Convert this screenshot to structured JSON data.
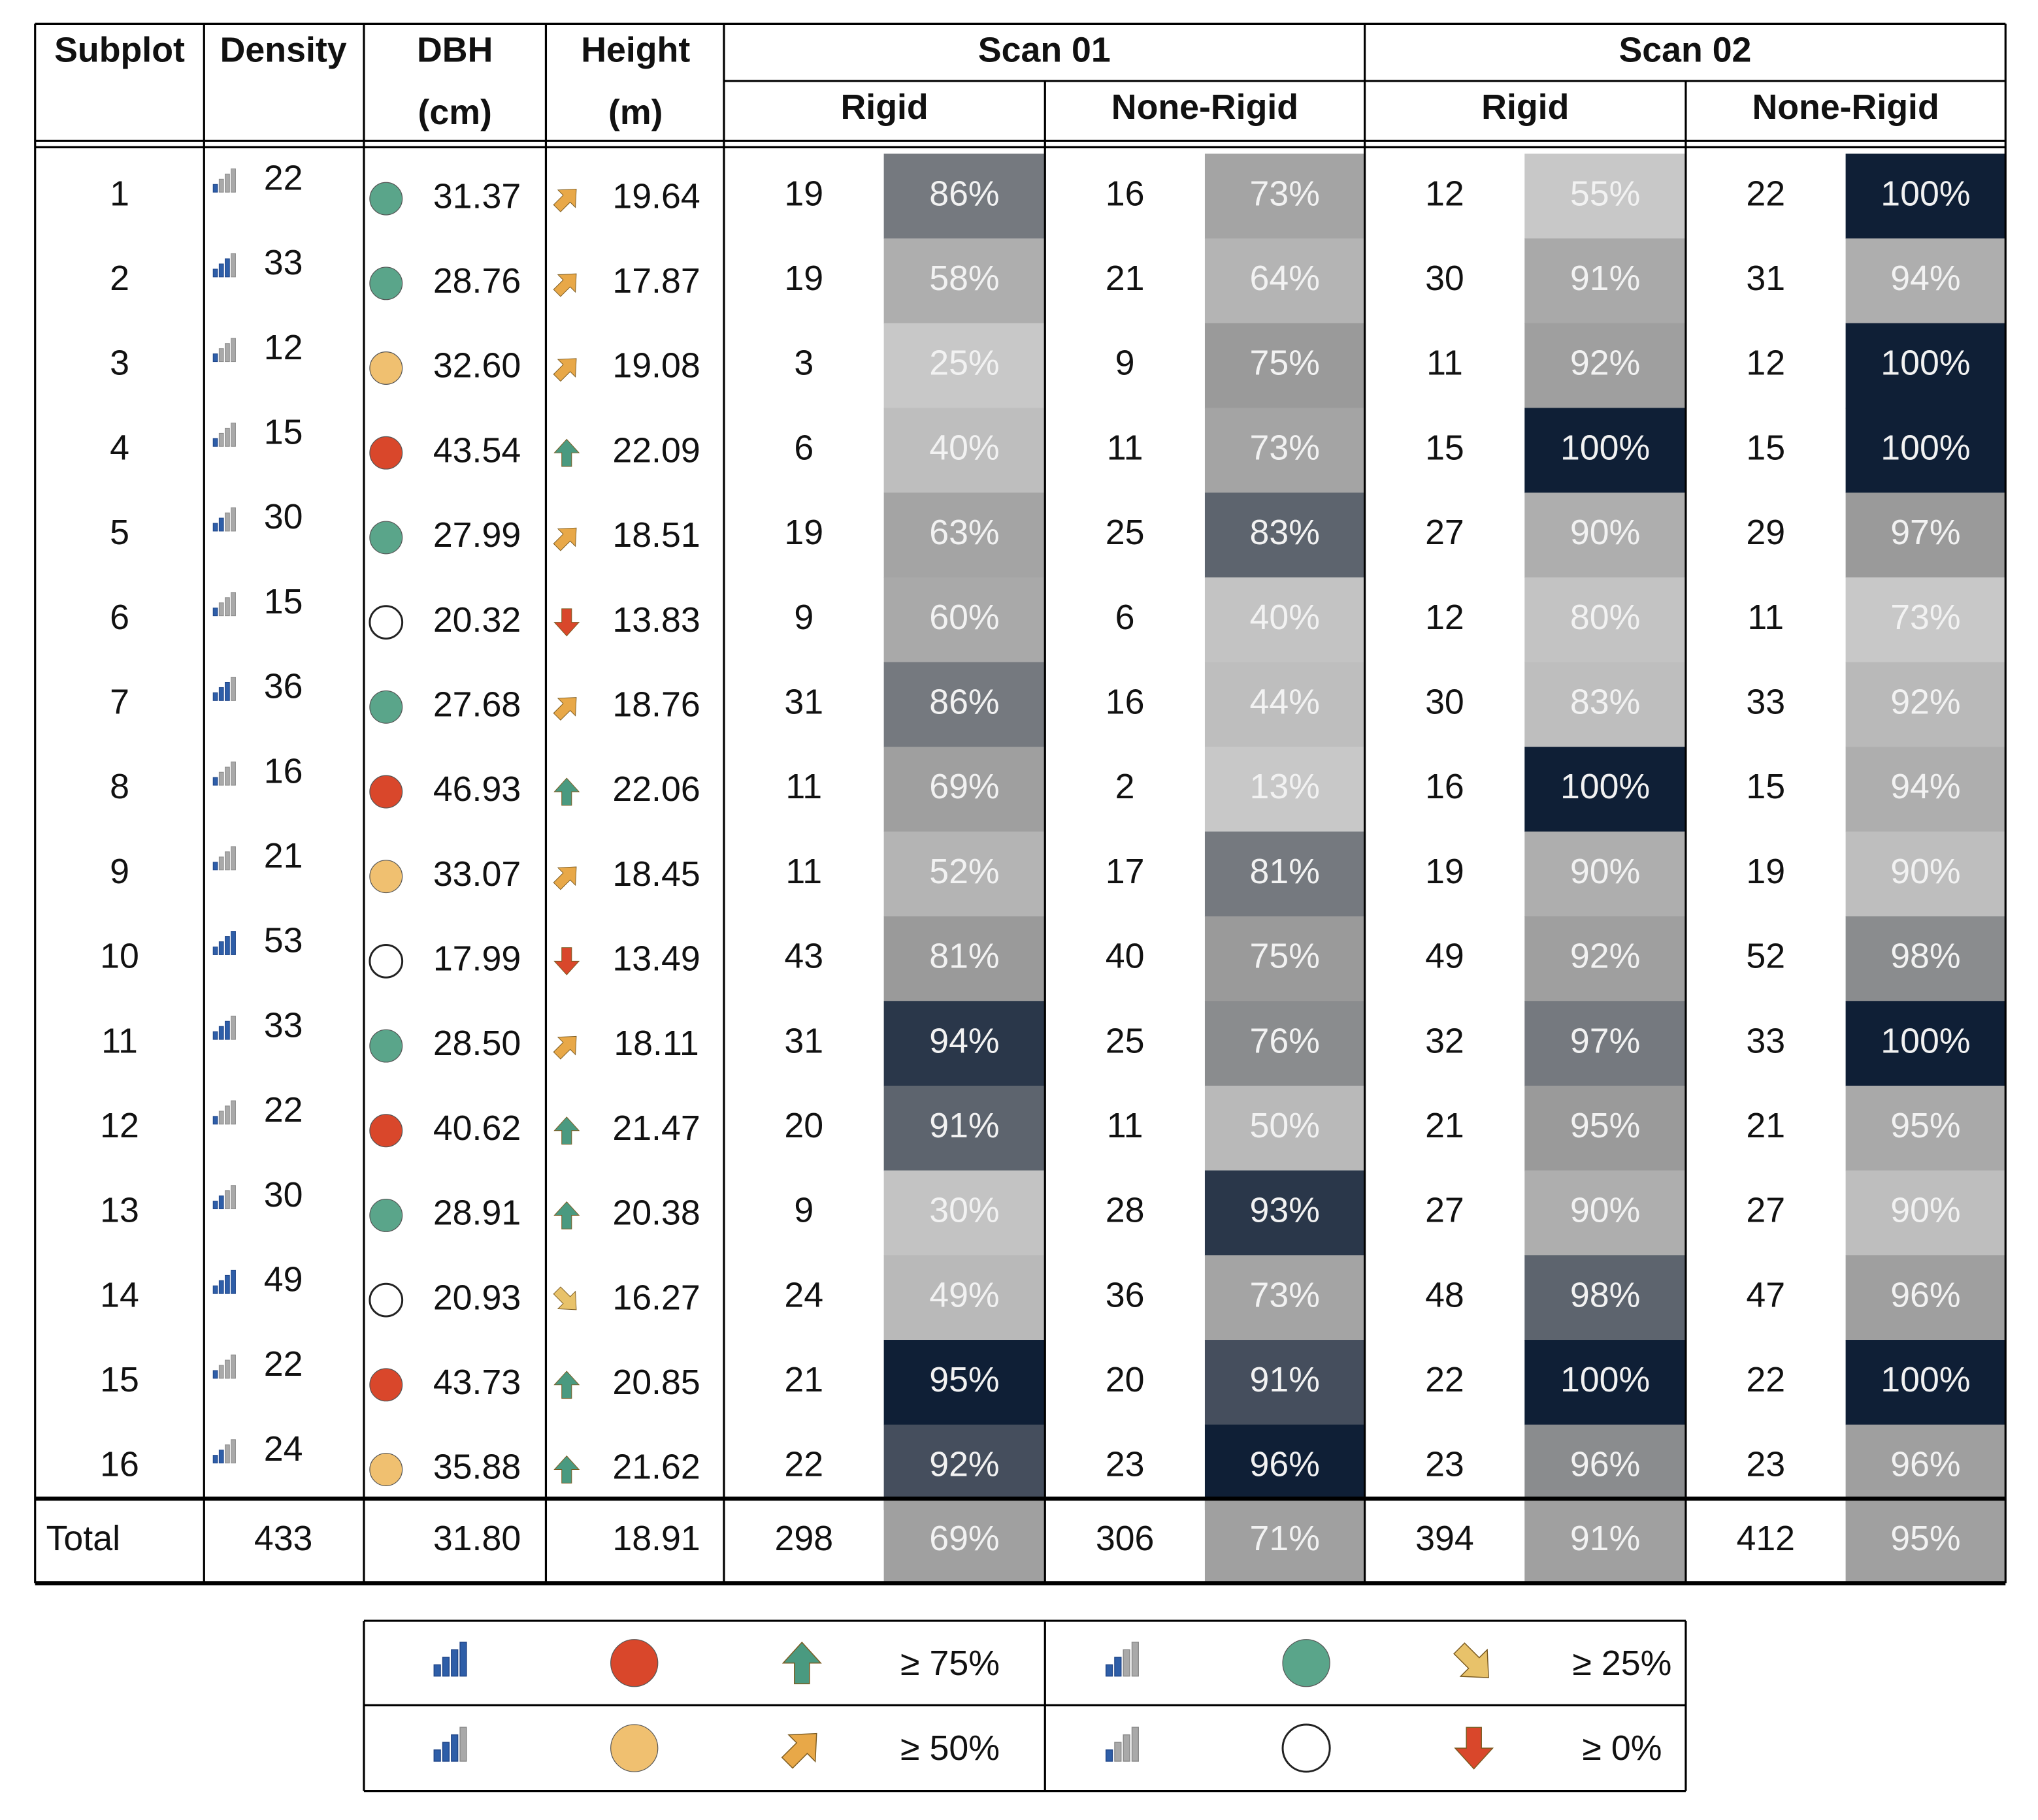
{
  "header": {
    "subplot": "Subplot",
    "density": "Density",
    "dbh": [
      "DBH",
      "(cm)"
    ],
    "height": [
      "Height",
      "(m)"
    ],
    "scans": [
      {
        "title": "Scan 01",
        "subs": [
          "Rigid",
          "None-Rigid"
        ]
      },
      {
        "title": "Scan 02",
        "subs": [
          "Rigid",
          "None-Rigid"
        ]
      }
    ]
  },
  "table": {
    "rows": [
      [
        "1",
        "22",
        "31.37",
        "19.64",
        "19",
        "86%",
        "16",
        "73%",
        "12",
        "55%",
        "22",
        "100%"
      ],
      [
        "2",
        "33",
        "28.76",
        "17.87",
        "19",
        "58%",
        "21",
        "64%",
        "30",
        "91%",
        "31",
        "94%"
      ],
      [
        "3",
        "12",
        "32.60",
        "19.08",
        "3",
        "25%",
        "9",
        "75%",
        "11",
        "92%",
        "12",
        "100%"
      ],
      [
        "4",
        "15",
        "43.54",
        "22.09",
        "6",
        "40%",
        "11",
        "73%",
        "15",
        "100%",
        "15",
        "100%"
      ],
      [
        "5",
        "30",
        "27.99",
        "18.51",
        "19",
        "63%",
        "25",
        "83%",
        "27",
        "90%",
        "29",
        "97%"
      ],
      [
        "6",
        "15",
        "20.32",
        "13.83",
        "9",
        "60%",
        "6",
        "40%",
        "12",
        "80%",
        "11",
        "73%"
      ],
      [
        "7",
        "36",
        "27.68",
        "18.76",
        "31",
        "86%",
        "16",
        "44%",
        "30",
        "83%",
        "33",
        "92%"
      ],
      [
        "8",
        "16",
        "46.93",
        "22.06",
        "11",
        "69%",
        "2",
        "13%",
        "16",
        "100%",
        "15",
        "94%"
      ],
      [
        "9",
        "21",
        "33.07",
        "18.45",
        "11",
        "52%",
        "17",
        "81%",
        "19",
        "90%",
        "19",
        "90%"
      ],
      [
        "10",
        "53",
        "17.99",
        "13.49",
        "43",
        "81%",
        "40",
        "75%",
        "49",
        "92%",
        "52",
        "98%"
      ],
      [
        "11",
        "33",
        "28.50",
        "18.11",
        "31",
        "94%",
        "25",
        "76%",
        "32",
        "97%",
        "33",
        "100%"
      ],
      [
        "12",
        "22",
        "40.62",
        "21.47",
        "20",
        "91%",
        "11",
        "50%",
        "21",
        "95%",
        "21",
        "95%"
      ],
      [
        "13",
        "30",
        "28.91",
        "20.38",
        "9",
        "30%",
        "28",
        "93%",
        "27",
        "90%",
        "27",
        "90%"
      ],
      [
        "14",
        "49",
        "20.93",
        "16.27",
        "24",
        "49%",
        "36",
        "73%",
        "48",
        "98%",
        "47",
        "96%"
      ],
      [
        "15",
        "22",
        "43.73",
        "20.85",
        "21",
        "95%",
        "20",
        "91%",
        "22",
        "100%",
        "22",
        "100%"
      ],
      [
        "16",
        "24",
        "35.88",
        "21.62",
        "22",
        "92%",
        "23",
        "96%",
        "23",
        "96%",
        "23",
        "96%"
      ]
    ],
    "total": [
      "Total",
      "433",
      "31.80",
      "18.91",
      "298",
      "69%",
      "306",
      "71%",
      "394",
      "91%",
      "412",
      "95%"
    ]
  },
  "legend": {
    "thresholds": [
      "≥ 75%",
      "≥ 50%",
      "≥ 25%",
      "≥ 0%"
    ]
  }
}
